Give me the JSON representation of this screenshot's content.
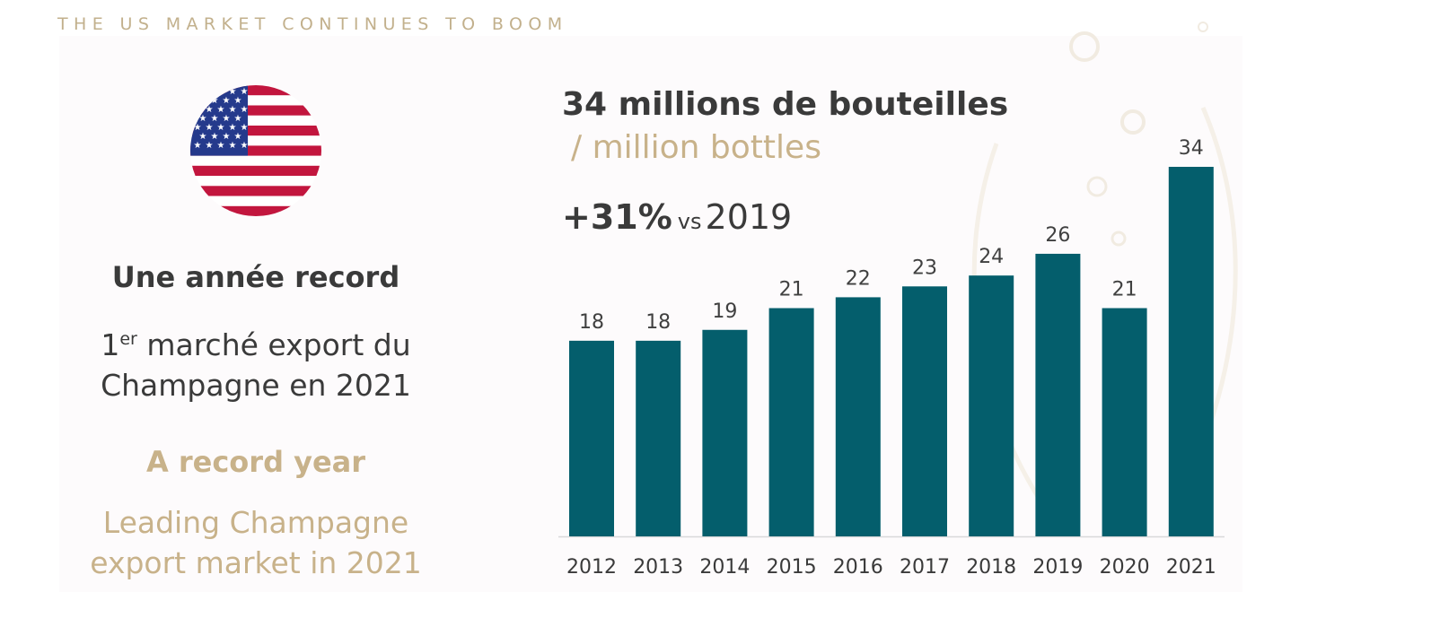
{
  "header": {
    "title": "THE US MARKET CONTINUES TO BOOM"
  },
  "left": {
    "record_fr": "Une année record",
    "market_fr_num": "1",
    "market_fr_sup": "er",
    "market_fr_line1": " marché export du",
    "market_fr_line2": "Champagne en 2021",
    "record_en": "A record year",
    "market_en_line1": "Leading Champagne",
    "market_en_line2": "export market in 2021"
  },
  "headline": {
    "fr": "34 millions de bouteilles",
    "en": " / million bottles"
  },
  "growth": {
    "pct": "+31%",
    "vs": "vs",
    "year": "2019"
  },
  "colors": {
    "bar": "#045e6c",
    "gold": "#c8b28a",
    "text": "#3a3a3a"
  },
  "chart_data": {
    "type": "bar",
    "title": "34 millions de bouteilles / million bottles",
    "xlabel": "",
    "ylabel": "",
    "categories": [
      "2012",
      "2013",
      "2014",
      "2015",
      "2016",
      "2017",
      "2018",
      "2019",
      "2020",
      "2021"
    ],
    "values": [
      18,
      18,
      19,
      21,
      22,
      23,
      24,
      26,
      21,
      34
    ],
    "value_labels": [
      "18",
      "18",
      "19",
      "21",
      "22",
      "23",
      "24",
      "26",
      "21",
      "34"
    ],
    "ylim": [
      0,
      34
    ],
    "grid": false
  }
}
